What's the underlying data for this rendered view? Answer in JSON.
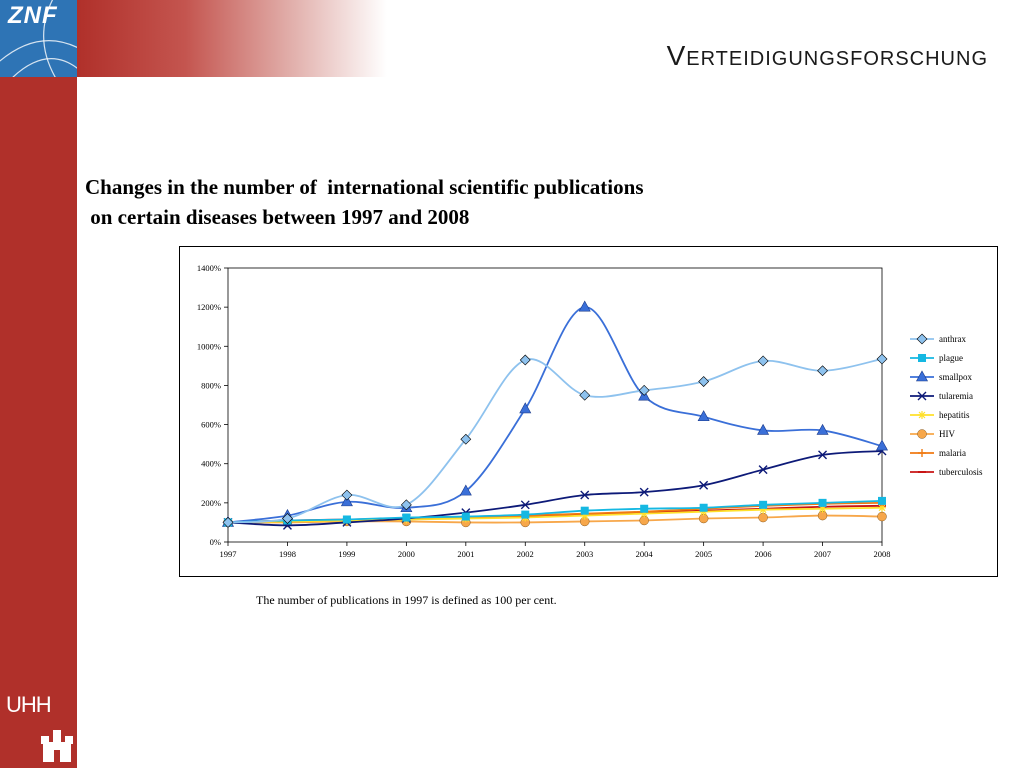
{
  "header": {
    "logo": "ZNF",
    "title": "Verteidigungsforschung"
  },
  "heading": {
    "line1": "Changes in the number of  international scientific publications",
    "line2": " on certain diseases between 1997 and 2008"
  },
  "footnote": "The number of publications in 1997 is defined as 100 per cent.",
  "footer": {
    "logo_text": "UHH"
  },
  "colors": {
    "sidebar": "#b0302a",
    "logo_bg": "#2e74b5"
  },
  "chart_data": {
    "type": "line",
    "title": "",
    "xlabel": "",
    "ylabel": "",
    "categories": [
      "1997",
      "1998",
      "1999",
      "2000",
      "2001",
      "2002",
      "2003",
      "2004",
      "2005",
      "2006",
      "2007",
      "2008"
    ],
    "ylim": [
      0,
      1400
    ],
    "y_ticks": [
      0,
      200,
      400,
      600,
      800,
      1000,
      1200,
      1400
    ],
    "y_tick_suffix": "%",
    "grid": false,
    "legend_position": "right",
    "series": [
      {
        "name": "anthrax",
        "color": "#8ec2ee",
        "marker": "diamond",
        "values": [
          100,
          120,
          240,
          190,
          525,
          930,
          750,
          775,
          820,
          925,
          875,
          935
        ]
      },
      {
        "name": "plague",
        "color": "#15b8e2",
        "marker": "square",
        "values": [
          100,
          110,
          115,
          125,
          130,
          140,
          160,
          170,
          175,
          190,
          200,
          210
        ]
      },
      {
        "name": "smallpox",
        "color": "#3a6fd8",
        "marker": "triangle",
        "values": [
          100,
          135,
          205,
          175,
          260,
          680,
          1200,
          745,
          640,
          570,
          570,
          490
        ]
      },
      {
        "name": "tularemia",
        "color": "#0d1a78",
        "marker": "x",
        "values": [
          100,
          85,
          100,
          120,
          150,
          190,
          240,
          255,
          290,
          370,
          445,
          465
        ]
      },
      {
        "name": "hepatitis",
        "color": "#ffe02a",
        "marker": "star",
        "values": [
          100,
          105,
          110,
          115,
          120,
          125,
          135,
          145,
          155,
          165,
          170,
          175
        ]
      },
      {
        "name": "HIV",
        "color": "#f7a74a",
        "marker": "circle",
        "values": [
          100,
          100,
          105,
          105,
          100,
          100,
          105,
          110,
          120,
          125,
          135,
          130
        ]
      },
      {
        "name": "malaria",
        "color": "#f07a12",
        "marker": "plus",
        "values": [
          100,
          105,
          110,
          115,
          125,
          135,
          145,
          155,
          170,
          185,
          195,
          200
        ]
      },
      {
        "name": "tuberculosis",
        "color": "#c81414",
        "marker": "dash",
        "values": [
          100,
          110,
          115,
          120,
          125,
          130,
          140,
          150,
          160,
          170,
          180,
          185
        ]
      }
    ]
  }
}
